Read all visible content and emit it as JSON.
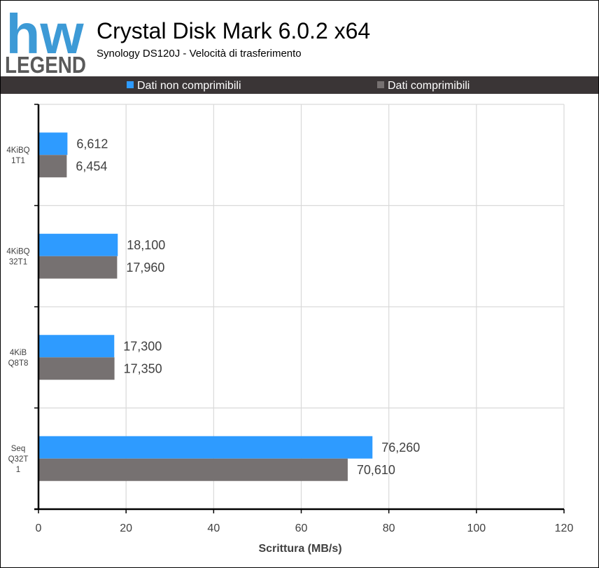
{
  "header": {
    "logo_text": "LEGEND",
    "logo_mark": "hw",
    "title": "Crystal Disk Mark 6.0.2 x64",
    "subtitle": "Synology DS120J - Velocità di trasferimento"
  },
  "colors": {
    "series_1": "#2e9bff",
    "series_2": "#767171",
    "legend_bar": "#3a3536",
    "gridline": "#d9d9d9",
    "logo_blue": "#3d9ad6",
    "logo_gray": "#5a5a5a"
  },
  "chart_data": {
    "type": "bar",
    "orientation": "horizontal",
    "categories": [
      [
        "4KiBQ",
        "1T1"
      ],
      [
        "4KiBQ",
        "32T1"
      ],
      [
        "4KiB",
        "Q8T8"
      ],
      [
        "Seq",
        "Q32T",
        "1"
      ]
    ],
    "series": [
      {
        "name": "Dati non comprimibili",
        "values": [
          6.612,
          18.1,
          17.3,
          76.26
        ],
        "labels": [
          "6,612",
          "18,100",
          "17,300",
          "76,260"
        ]
      },
      {
        "name": "Dati comprimibili",
        "values": [
          6.454,
          17.96,
          17.35,
          70.61
        ],
        "labels": [
          "6,454",
          "17,960",
          "17,350",
          "70,610"
        ]
      }
    ],
    "xlabel": "Scrittura (MB/s)",
    "xlim": [
      0,
      120
    ],
    "xticks": [
      0,
      20,
      40,
      60,
      80,
      100,
      120
    ],
    "grid": true,
    "legend_position": "top"
  }
}
